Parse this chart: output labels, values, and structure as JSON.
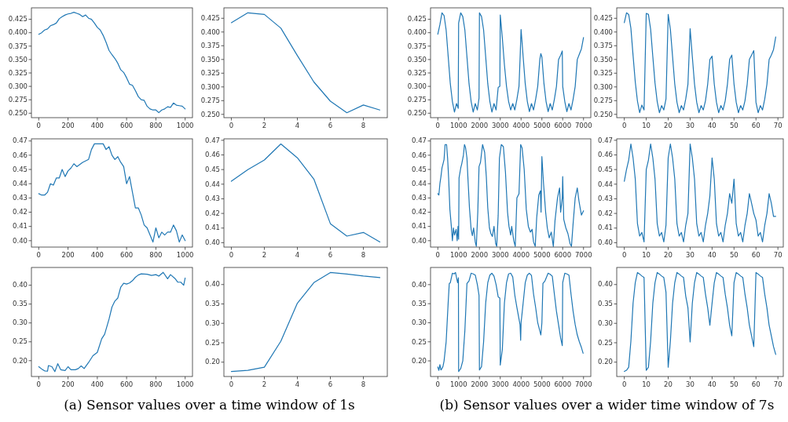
{
  "chart_data": [
    {
      "type": "line",
      "x": [
        0,
        20,
        40,
        60,
        80,
        100,
        120,
        140,
        160,
        180,
        200,
        220,
        240,
        260,
        280,
        300,
        320,
        340,
        360,
        380,
        400,
        420,
        440,
        460,
        480,
        500,
        520,
        540,
        560,
        580,
        600,
        620,
        640,
        660,
        680,
        700,
        720,
        740,
        760,
        780,
        800,
        820,
        840,
        860,
        880,
        900,
        920,
        940,
        960,
        980,
        1000
      ],
      "series": [
        {
          "color": "#1f77b4",
          "values": [
            0.397,
            0.4,
            0.405,
            0.407,
            0.413,
            0.415,
            0.418,
            0.426,
            0.43,
            0.433,
            0.435,
            0.436,
            0.438,
            0.436,
            0.434,
            0.43,
            0.433,
            0.427,
            0.425,
            0.418,
            0.41,
            0.405,
            0.395,
            0.382,
            0.367,
            0.359,
            0.352,
            0.343,
            0.331,
            0.326,
            0.316,
            0.304,
            0.302,
            0.292,
            0.281,
            0.275,
            0.274,
            0.263,
            0.258,
            0.256,
            0.256,
            0.251,
            0.256,
            0.258,
            0.262,
            0.261,
            0.269,
            0.265,
            0.264,
            0.263,
            0.258
          ]
        }
      ],
      "xlim": [
        -50,
        1050
      ],
      "xticks": [
        0,
        200,
        400,
        600,
        800,
        1000
      ],
      "ylim": [
        0.2417,
        0.4463
      ],
      "yticks": [
        {
          "value": 0.25,
          "label": "0.250"
        },
        0.275,
        {
          "value": 0.3,
          "label": "0.300"
        },
        0.325,
        {
          "value": 0.35,
          "label": "0.350"
        },
        0.375,
        {
          "value": 0.4,
          "label": "0.400"
        },
        0.425
      ]
    },
    {
      "type": "line",
      "x": [
        0,
        1,
        2,
        3,
        4,
        5,
        6,
        7,
        8,
        9
      ],
      "series": [
        {
          "color": "#1f77b4",
          "values": [
            0.417,
            0.435,
            0.432,
            0.407,
            0.357,
            0.309,
            0.274,
            0.253,
            0.267,
            0.258
          ]
        }
      ],
      "xlim": [
        -0.45,
        9.45
      ],
      "xticks": [
        0,
        2,
        4,
        6,
        8
      ],
      "ylim": [
        0.244,
        0.444
      ],
      "yticks": [
        {
          "value": 0.25,
          "label": "0.250"
        },
        0.275,
        {
          "value": 0.3,
          "label": "0.300"
        },
        0.325,
        {
          "value": 0.35,
          "label": "0.350"
        },
        0.375,
        {
          "value": 0.4,
          "label": "0.400"
        },
        0.425
      ]
    },
    {
      "type": "line",
      "x": [
        0,
        100,
        200,
        300,
        400,
        500,
        600,
        700,
        800,
        900,
        980,
        1000,
        1100,
        1200,
        1300,
        1400,
        1500,
        1600,
        1700,
        1800,
        1900,
        1980,
        2000,
        2100,
        2200,
        2300,
        2400,
        2500,
        2600,
        2700,
        2800,
        2900,
        2980,
        3000,
        3100,
        3200,
        3300,
        3400,
        3500,
        3600,
        3700,
        3800,
        3900,
        3950,
        4000,
        4100,
        4200,
        4300,
        4400,
        4500,
        4600,
        4700,
        4800,
        4900,
        4950,
        5000,
        5100,
        5200,
        5300,
        5400,
        5500,
        5600,
        5700,
        5800,
        5900,
        5980,
        6000,
        6100,
        6200,
        6300,
        6400,
        6500,
        6600,
        6700,
        6800,
        6900,
        7000
      ],
      "series": [
        {
          "color": "#1f77b4",
          "values": [
            0.397,
            0.415,
            0.437,
            0.432,
            0.405,
            0.355,
            0.305,
            0.272,
            0.252,
            0.268,
            0.259,
            0.418,
            0.437,
            0.43,
            0.405,
            0.355,
            0.305,
            0.272,
            0.252,
            0.268,
            0.256,
            0.278,
            0.437,
            0.43,
            0.405,
            0.355,
            0.305,
            0.272,
            0.252,
            0.268,
            0.256,
            0.298,
            0.3,
            0.433,
            0.39,
            0.34,
            0.3,
            0.272,
            0.256,
            0.268,
            0.256,
            0.276,
            0.3,
            0.35,
            0.406,
            0.355,
            0.305,
            0.272,
            0.253,
            0.268,
            0.256,
            0.276,
            0.3,
            0.35,
            0.361,
            0.355,
            0.305,
            0.272,
            0.253,
            0.268,
            0.256,
            0.276,
            0.3,
            0.35,
            0.358,
            0.366,
            0.3,
            0.272,
            0.253,
            0.268,
            0.256,
            0.276,
            0.3,
            0.35,
            0.36,
            0.37,
            0.391
          ]
        }
      ],
      "xlim": [
        -350,
        7350
      ],
      "xticks": [
        0,
        1000,
        2000,
        3000,
        4000,
        5000,
        6000,
        7000
      ],
      "ylim": [
        0.2417,
        0.4463
      ],
      "yticks": [
        {
          "value": 0.25,
          "label": "0.250"
        },
        0.275,
        {
          "value": 0.3,
          "label": "0.300"
        },
        0.325,
        {
          "value": 0.35,
          "label": "0.350"
        },
        0.375,
        {
          "value": 0.4,
          "label": "0.400"
        },
        0.425
      ]
    },
    {
      "type": "line",
      "x": [
        0,
        1,
        2,
        3,
        4,
        5,
        6,
        7,
        8,
        9,
        10,
        11,
        12,
        13,
        14,
        15,
        16,
        17,
        18,
        19,
        20,
        21,
        22,
        23,
        24,
        25,
        26,
        27,
        28,
        29,
        30,
        31,
        32,
        33,
        34,
        35,
        36,
        37,
        38,
        39,
        40,
        41,
        42,
        43,
        44,
        45,
        46,
        47,
        48,
        49,
        50,
        51,
        52,
        53,
        54,
        55,
        56,
        57,
        58,
        59,
        60,
        61,
        62,
        63,
        64,
        65,
        66,
        67,
        68,
        69
      ],
      "series": [
        {
          "color": "#1f77b4",
          "values": [
            0.417,
            0.435,
            0.432,
            0.407,
            0.357,
            0.309,
            0.274,
            0.253,
            0.267,
            0.258,
            0.434,
            0.432,
            0.405,
            0.355,
            0.307,
            0.273,
            0.253,
            0.266,
            0.258,
            0.278,
            0.432,
            0.405,
            0.355,
            0.305,
            0.272,
            0.253,
            0.266,
            0.258,
            0.278,
            0.305,
            0.406,
            0.355,
            0.305,
            0.272,
            0.253,
            0.266,
            0.258,
            0.275,
            0.305,
            0.35,
            0.356,
            0.305,
            0.272,
            0.253,
            0.266,
            0.258,
            0.275,
            0.305,
            0.35,
            0.358,
            0.305,
            0.272,
            0.253,
            0.266,
            0.258,
            0.275,
            0.305,
            0.35,
            0.358,
            0.366,
            0.272,
            0.253,
            0.266,
            0.258,
            0.278,
            0.305,
            0.35,
            0.358,
            0.368,
            0.391
          ]
        }
      ],
      "xlim": [
        -3.45,
        72.45
      ],
      "xticks": [
        0,
        10,
        20,
        30,
        40,
        50,
        60,
        70
      ],
      "ylim": [
        0.244,
        0.444
      ],
      "yticks": [
        {
          "value": 0.25,
          "label": "0.250"
        },
        0.275,
        {
          "value": 0.3,
          "label": "0.300"
        },
        0.325,
        {
          "value": 0.35,
          "label": "0.350"
        },
        0.375,
        {
          "value": 0.4,
          "label": "0.400"
        },
        0.425
      ]
    },
    {
      "type": "line",
      "x": [
        0,
        20,
        40,
        60,
        80,
        100,
        120,
        140,
        160,
        180,
        200,
        220,
        240,
        260,
        300,
        340,
        360,
        380,
        420,
        440,
        460,
        480,
        500,
        520,
        540,
        560,
        580,
        600,
        620,
        640,
        660,
        680,
        700,
        720,
        740,
        760,
        780,
        800,
        820,
        840,
        860,
        880,
        900,
        920,
        940,
        960,
        980,
        1000
      ],
      "series": [
        {
          "color": "#1f77b4",
          "values": [
            0.433,
            0.432,
            0.432,
            0.434,
            0.44,
            0.439,
            0.444,
            0.444,
            0.45,
            0.445,
            0.449,
            0.451,
            0.454,
            0.452,
            0.455,
            0.457,
            0.464,
            0.468,
            0.468,
            0.468,
            0.464,
            0.466,
            0.46,
            0.457,
            0.459,
            0.455,
            0.452,
            0.44,
            0.445,
            0.434,
            0.423,
            0.423,
            0.418,
            0.411,
            0.409,
            0.404,
            0.399,
            0.409,
            0.402,
            0.406,
            0.404,
            0.406,
            0.406,
            0.411,
            0.407,
            0.399,
            0.404,
            0.4
          ]
        }
      ],
      "xlim": [
        -50,
        1050
      ],
      "xticks": [
        0,
        200,
        400,
        600,
        800,
        1000
      ],
      "ylim": [
        0.3955,
        0.4715
      ],
      "yticks": [
        {
          "value": 0.4,
          "label": "0.40"
        },
        0.41,
        0.42,
        0.43,
        0.44,
        0.45,
        0.46,
        0.47
      ]
    },
    {
      "type": "line",
      "x": [
        0,
        1,
        2,
        3,
        4,
        5,
        6,
        7,
        8,
        9
      ],
      "series": [
        {
          "color": "#1f77b4",
          "values": [
            0.442,
            0.45,
            0.4565,
            0.4675,
            0.458,
            0.4435,
            0.413,
            0.4045,
            0.407,
            0.4005
          ]
        }
      ],
      "xlim": [
        -0.45,
        9.45
      ],
      "xticks": [
        0,
        2,
        4,
        6,
        8
      ],
      "ylim": [
        0.397,
        0.471
      ],
      "yticks": [
        {
          "value": 0.4,
          "label": "0.40"
        },
        0.41,
        0.42,
        0.43,
        0.44,
        0.45,
        0.46,
        0.47
      ]
    },
    {
      "type": "line",
      "x": [
        0,
        50,
        100,
        150,
        200,
        250,
        300,
        350,
        420,
        470,
        520,
        580,
        650,
        700,
        750,
        800,
        880,
        930,
        970,
        1000,
        1020,
        1100,
        1150,
        1230,
        1280,
        1330,
        1400,
        1450,
        1520,
        1600,
        1660,
        1720,
        1800,
        1850,
        1920,
        1980,
        2050,
        2150,
        2250,
        2330,
        2400,
        2480,
        2550,
        2620,
        2700,
        2780,
        2830,
        2900,
        2960,
        3050,
        3150,
        3250,
        3350,
        3420,
        3500,
        3550,
        3650,
        3720,
        3800,
        3900,
        3980,
        4050,
        4150,
        4250,
        4350,
        4450,
        4530,
        4600,
        4680,
        4750,
        4850,
        4930,
        4960,
        5000,
        5080,
        5180,
        5260,
        5350,
        5450,
        5550,
        5630,
        5750,
        5850,
        5900,
        5980,
        6000,
        6050,
        6150,
        6250,
        6350,
        6420,
        6500,
        6600,
        6700,
        6780,
        6850,
        6900,
        7000
      ],
      "series": [
        {
          "color": "#1f77b4",
          "values": [
            0.433,
            0.432,
            0.44,
            0.445,
            0.451,
            0.454,
            0.457,
            0.4675,
            0.4675,
            0.458,
            0.444,
            0.422,
            0.41,
            0.4,
            0.409,
            0.404,
            0.408,
            0.4,
            0.41,
            0.401,
            0.444,
            0.451,
            0.454,
            0.46,
            0.4675,
            0.4655,
            0.458,
            0.443,
            0.423,
            0.408,
            0.4035,
            0.409,
            0.399,
            0.396,
            0.42,
            0.452,
            0.455,
            0.4675,
            0.462,
            0.445,
            0.423,
            0.409,
            0.405,
            0.403,
            0.41,
            0.398,
            0.396,
            0.418,
            0.458,
            0.4675,
            0.466,
            0.448,
            0.42,
            0.41,
            0.404,
            0.41,
            0.4,
            0.396,
            0.43,
            0.433,
            0.4675,
            0.465,
            0.45,
            0.422,
            0.41,
            0.406,
            0.408,
            0.399,
            0.396,
            0.416,
            0.432,
            0.435,
            0.42,
            0.459,
            0.44,
            0.42,
            0.409,
            0.402,
            0.406,
            0.396,
            0.414,
            0.43,
            0.437,
            0.42,
            0.43,
            0.445,
            0.415,
            0.409,
            0.405,
            0.398,
            0.396,
            0.412,
            0.43,
            0.437,
            0.428,
            0.422,
            0.418,
            0.421
          ]
        }
      ],
      "xlim": [
        -350,
        7350
      ],
      "xticks": [
        0,
        1000,
        2000,
        3000,
        4000,
        5000,
        6000,
        7000
      ],
      "ylim": [
        0.3955,
        0.4715
      ],
      "yticks": [
        {
          "value": 0.4,
          "label": "0.40"
        },
        0.41,
        0.42,
        0.43,
        0.44,
        0.45,
        0.46,
        0.47
      ]
    },
    {
      "type": "line",
      "x": [
        0,
        1,
        2,
        3,
        4,
        5,
        6,
        7,
        8,
        9,
        10,
        11,
        12,
        13,
        14,
        15,
        16,
        17,
        18,
        19,
        20,
        21,
        22,
        23,
        24,
        25,
        26,
        27,
        28,
        29,
        30,
        31,
        32,
        33,
        34,
        35,
        36,
        37,
        38,
        39,
        40,
        41,
        42,
        43,
        44,
        45,
        46,
        47,
        48,
        49,
        50,
        51,
        52,
        53,
        54,
        55,
        56,
        57,
        58,
        59,
        60,
        61,
        62,
        63,
        64,
        65,
        66,
        67,
        68,
        69
      ],
      "series": [
        {
          "color": "#1f77b4",
          "values": [
            0.442,
            0.45,
            0.4565,
            0.4675,
            0.458,
            0.4435,
            0.413,
            0.4045,
            0.407,
            0.4005,
            0.45,
            0.4565,
            0.4675,
            0.458,
            0.4435,
            0.413,
            0.4045,
            0.407,
            0.4005,
            0.412,
            0.458,
            0.4675,
            0.458,
            0.4435,
            0.413,
            0.4045,
            0.407,
            0.4005,
            0.412,
            0.42,
            0.4675,
            0.458,
            0.4435,
            0.413,
            0.4045,
            0.407,
            0.4005,
            0.412,
            0.42,
            0.432,
            0.458,
            0.4435,
            0.413,
            0.4045,
            0.407,
            0.4005,
            0.412,
            0.42,
            0.4335,
            0.427,
            0.4435,
            0.413,
            0.4045,
            0.407,
            0.4005,
            0.412,
            0.42,
            0.4335,
            0.427,
            0.42,
            0.4155,
            0.4045,
            0.407,
            0.4005,
            0.412,
            0.42,
            0.4335,
            0.427,
            0.418,
            0.418
          ]
        }
      ],
      "xlim": [
        -3.45,
        72.45
      ],
      "xticks": [
        0,
        10,
        20,
        30,
        40,
        50,
        60,
        70
      ],
      "ylim": [
        0.397,
        0.471
      ],
      "yticks": [
        {
          "value": 0.4,
          "label": "0.40"
        },
        0.41,
        0.42,
        0.43,
        0.44,
        0.45,
        0.46,
        0.47
      ]
    },
    {
      "type": "line",
      "x": [
        0,
        20,
        40,
        60,
        66,
        90,
        110,
        130,
        150,
        180,
        200,
        220,
        250,
        270,
        290,
        310,
        340,
        370,
        400,
        430,
        450,
        480,
        500,
        520,
        540,
        560,
        580,
        600,
        620,
        640,
        660,
        680,
        700,
        740,
        770,
        800,
        820,
        850,
        880,
        900,
        930,
        950,
        970,
        990,
        1000
      ],
      "series": [
        {
          "color": "#1f77b4",
          "values": [
            0.184,
            0.178,
            0.173,
            0.172,
            0.187,
            0.184,
            0.171,
            0.192,
            0.176,
            0.174,
            0.184,
            0.176,
            0.176,
            0.179,
            0.186,
            0.179,
            0.195,
            0.213,
            0.222,
            0.258,
            0.27,
            0.31,
            0.342,
            0.358,
            0.366,
            0.395,
            0.405,
            0.403,
            0.406,
            0.412,
            0.421,
            0.427,
            0.43,
            0.429,
            0.426,
            0.428,
            0.424,
            0.434,
            0.417,
            0.428,
            0.418,
            0.408,
            0.408,
            0.4,
            0.419
          ]
        }
      ],
      "xlim": [
        -50,
        1050
      ],
      "xticks": [
        0,
        200,
        400,
        600,
        800,
        1000
      ],
      "ylim": [
        0.158,
        0.447
      ],
      "yticks": [
        {
          "value": 0.2,
          "label": "0.20"
        },
        0.25,
        {
          "value": 0.3,
          "label": "0.30"
        },
        0.35,
        {
          "value": 0.4,
          "label": "0.40"
        }
      ],
      "annotations": [
        "(a) Sensor values over a time window of 1s"
      ]
    },
    {
      "type": "line",
      "x": [
        0,
        1,
        2,
        3,
        4,
        5,
        6,
        7,
        8,
        9
      ],
      "series": [
        {
          "color": "#1f77b4",
          "values": [
            0.176,
            0.179,
            0.187,
            0.254,
            0.352,
            0.405,
            0.431,
            0.427,
            0.422,
            0.418
          ]
        }
      ],
      "xlim": [
        -0.45,
        9.45
      ],
      "xticks": [
        0,
        2,
        4,
        6,
        8
      ],
      "ylim": [
        0.163,
        0.444
      ],
      "yticks": [
        {
          "value": 0.2,
          "label": "0.20"
        },
        0.25,
        {
          "value": 0.3,
          "label": "0.30"
        },
        0.35,
        {
          "value": 0.4,
          "label": "0.40"
        }
      ]
    },
    {
      "type": "line",
      "x": [
        0,
        50,
        100,
        150,
        200,
        250,
        300,
        400,
        500,
        550,
        600,
        700,
        780,
        850,
        900,
        950,
        990,
        1000,
        1050,
        1100,
        1200,
        1300,
        1400,
        1500,
        1600,
        1700,
        1800,
        1900,
        1980,
        2000,
        2100,
        2200,
        2300,
        2400,
        2500,
        2600,
        2700,
        2800,
        2900,
        2980,
        3000,
        3100,
        3200,
        3300,
        3400,
        3500,
        3600,
        3700,
        3800,
        3950,
        3980,
        4000,
        4100,
        4200,
        4300,
        4400,
        4500,
        4600,
        4700,
        4800,
        4950,
        5000,
        5050,
        5150,
        5300,
        5400,
        5500,
        5600,
        5700,
        5800,
        5900,
        5980,
        6000,
        6100,
        6200,
        6300,
        6400,
        6500,
        6600,
        6700,
        6800,
        6900,
        6980
      ],
      "series": [
        {
          "color": "#1f77b4",
          "values": [
            0.184,
            0.175,
            0.19,
            0.176,
            0.18,
            0.186,
            0.2,
            0.25,
            0.355,
            0.403,
            0.405,
            0.43,
            0.428,
            0.432,
            0.418,
            0.405,
            0.418,
            0.172,
            0.176,
            0.18,
            0.2,
            0.28,
            0.403,
            0.41,
            0.43,
            0.428,
            0.425,
            0.4,
            0.372,
            0.176,
            0.185,
            0.25,
            0.352,
            0.405,
            0.425,
            0.43,
            0.422,
            0.4,
            0.368,
            0.365,
            0.189,
            0.23,
            0.352,
            0.405,
            0.428,
            0.43,
            0.42,
            0.372,
            0.34,
            0.295,
            0.254,
            0.3,
            0.352,
            0.405,
            0.425,
            0.43,
            0.424,
            0.375,
            0.34,
            0.3,
            0.268,
            0.3,
            0.403,
            0.41,
            0.43,
            0.427,
            0.422,
            0.375,
            0.33,
            0.295,
            0.26,
            0.24,
            0.405,
            0.43,
            0.428,
            0.425,
            0.375,
            0.33,
            0.295,
            0.268,
            0.25,
            0.235,
            0.22
          ]
        }
      ],
      "xlim": [
        -350,
        7350
      ],
      "xticks": [
        0,
        1000,
        2000,
        3000,
        4000,
        5000,
        6000,
        7000
      ],
      "ylim": [
        0.159,
        0.445
      ],
      "yticks": [
        {
          "value": 0.2,
          "label": "0.20"
        },
        0.25,
        {
          "value": 0.3,
          "label": "0.30"
        },
        0.35,
        {
          "value": 0.4,
          "label": "0.40"
        }
      ],
      "annotations": [
        "(b) Sensor values over a wider time window of 7s"
      ]
    },
    {
      "type": "line",
      "x": [
        0,
        1,
        2,
        3,
        4,
        5,
        6,
        7,
        8,
        9,
        10,
        11,
        12,
        13,
        14,
        15,
        16,
        17,
        18,
        19,
        20,
        21,
        22,
        23,
        24,
        25,
        26,
        27,
        28,
        29,
        30,
        31,
        32,
        33,
        34,
        35,
        36,
        37,
        38,
        39,
        40,
        41,
        42,
        43,
        44,
        45,
        46,
        47,
        48,
        49,
        50,
        51,
        52,
        53,
        54,
        55,
        56,
        57,
        58,
        59,
        60,
        61,
        62,
        63,
        64,
        65,
        66,
        67,
        68,
        69
      ],
      "series": [
        {
          "color": "#1f77b4",
          "values": [
            0.176,
            0.179,
            0.187,
            0.254,
            0.352,
            0.405,
            0.431,
            0.427,
            0.422,
            0.418,
            0.179,
            0.187,
            0.254,
            0.352,
            0.405,
            0.431,
            0.427,
            0.422,
            0.418,
            0.38,
            0.187,
            0.254,
            0.352,
            0.405,
            0.431,
            0.427,
            0.422,
            0.418,
            0.37,
            0.34,
            0.252,
            0.352,
            0.405,
            0.431,
            0.427,
            0.422,
            0.418,
            0.375,
            0.34,
            0.295,
            0.352,
            0.405,
            0.431,
            0.427,
            0.422,
            0.418,
            0.375,
            0.34,
            0.295,
            0.268,
            0.405,
            0.431,
            0.427,
            0.422,
            0.418,
            0.375,
            0.34,
            0.295,
            0.268,
            0.24,
            0.431,
            0.427,
            0.422,
            0.418,
            0.375,
            0.34,
            0.295,
            0.268,
            0.24,
            0.22
          ]
        }
      ],
      "xlim": [
        -3.45,
        72.45
      ],
      "xticks": [
        0,
        10,
        20,
        30,
        40,
        50,
        60,
        70
      ],
      "ylim": [
        0.163,
        0.444
      ],
      "yticks": [
        {
          "value": 0.2,
          "label": "0.20"
        },
        0.25,
        {
          "value": 0.3,
          "label": "0.30"
        },
        0.35,
        {
          "value": 0.4,
          "label": "0.40"
        }
      ]
    }
  ]
}
